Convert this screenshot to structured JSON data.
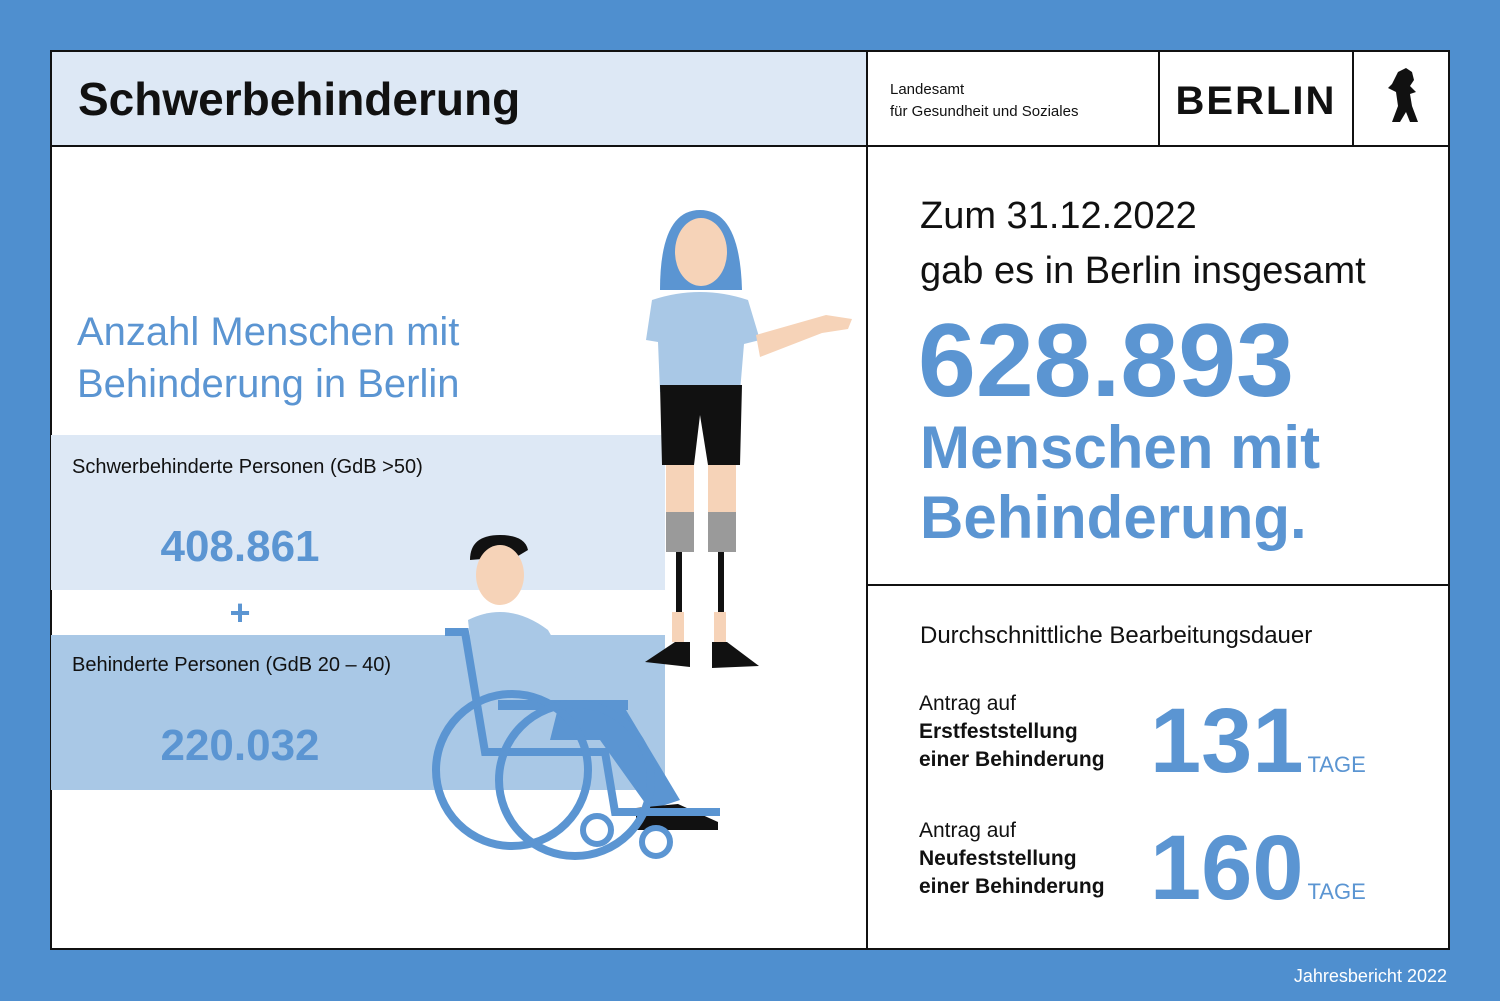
{
  "header": {
    "title": "Schwerbehinderung",
    "agency_line1": "Landesamt",
    "agency_line2": "für Gesundheit und Soziales",
    "brand": "BERLIN"
  },
  "left": {
    "heading_line1": "Anzahl Menschen mit",
    "heading_line2": "Behinderung in Berlin",
    "groups": [
      {
        "label": "Schwerbehinderte Personen (GdB >50)",
        "value": "408.861"
      },
      {
        "label": "Behinderte Personen (GdB 20 – 40)",
        "value": "220.032"
      }
    ],
    "operator": "+"
  },
  "total": {
    "line1": "Zum 31.12.2022",
    "line2": "gab es in Berlin insgesamt",
    "value": "628.893",
    "line3": "Menschen mit",
    "line4": "Behinderung."
  },
  "duration": {
    "title": "Durchschnittliche Bearbeitungsdauer",
    "items": [
      {
        "line1": "Antrag auf",
        "line2": "Erstfeststellung",
        "line3": "einer Behinderung",
        "value": "131",
        "unit": "TAGE"
      },
      {
        "line1": "Antrag auf",
        "line2": "Neufeststellung",
        "line3": "einer Behinderung",
        "value": "160",
        "unit": "TAGE"
      }
    ]
  },
  "footer": "Jahresbericht 2022"
}
